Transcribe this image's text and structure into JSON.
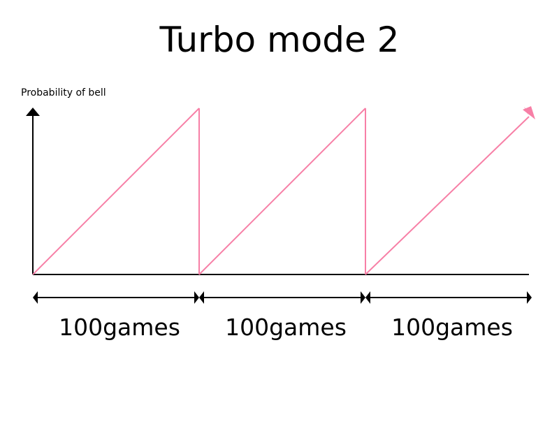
{
  "chart_data": {
    "type": "line",
    "title": "Turbo mode 2",
    "ylabel": "Probability of bell",
    "xlabel": "",
    "segment_label": "100games",
    "segments": [
      {
        "label": "100games",
        "games": 100
      },
      {
        "label": "100games",
        "games": 100
      },
      {
        "label": "100games",
        "games": 100
      }
    ],
    "series": [
      {
        "x": [
          0,
          100,
          100,
          200,
          200,
          300
        ],
        "y": [
          0,
          1,
          0,
          1,
          0,
          1
        ]
      }
    ],
    "xlim": [
      0,
      300
    ],
    "ylim": [
      0,
      1
    ],
    "line_color": "#f77fa6",
    "axis_color": "#000000",
    "grid": false
  }
}
